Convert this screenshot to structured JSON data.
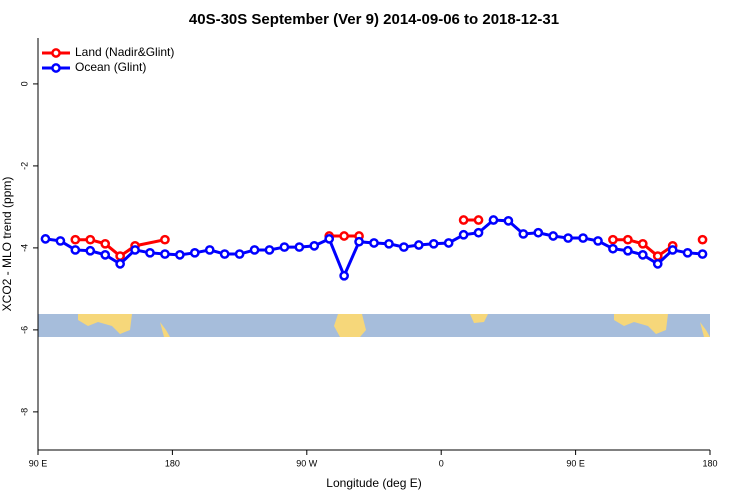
{
  "chart_data": {
    "type": "line",
    "title": "40S-30S September (Ver 9)   2014-09-06 to 2018-12-31",
    "xlabel": "Longitude (deg E)",
    "ylabel": "XCO2 - MLO trend (ppm)",
    "xlim": [
      90,
      540
    ],
    "ylim": [
      -8.93,
      1.12
    ],
    "xticks": [
      {
        "value": 90,
        "label": "90 E"
      },
      180,
      {
        "value": 270,
        "label": "90 W"
      },
      {
        "value": 360,
        "label": "0"
      },
      {
        "value": 450,
        "label": "90 E"
      },
      {
        "value": 540,
        "label": "180"
      }
    ],
    "yticks": [
      0,
      -2,
      -4,
      -6,
      -8
    ],
    "legend": "top-left",
    "series": [
      {
        "name": "Land (Nadir&Glint)",
        "color": "#ff0000",
        "x": [
          115,
          125,
          135,
          145,
          155,
          175,
          245,
          285,
          295,
          305,
          345,
          375,
          385,
          435,
          475,
          485,
          495,
          505,
          515,
          525,
          535
        ],
        "values": [
          -3.8,
          -3.8,
          -3.9,
          -4.2,
          -3.95,
          -3.8,
          null,
          -3.71,
          -3.71,
          -3.71,
          null,
          -3.32,
          -3.32,
          null,
          -3.8,
          -3.8,
          -3.9,
          -4.2,
          -3.95,
          null,
          -3.8
        ]
      },
      {
        "name": "Ocean (Glint)",
        "color": "#0000ff",
        "x": [
          95,
          105,
          115,
          125,
          135,
          145,
          155,
          165,
          175,
          185,
          195,
          205,
          215,
          225,
          235,
          245,
          255,
          265,
          275,
          285,
          295,
          305,
          315,
          325,
          335,
          345,
          355,
          365,
          375,
          385,
          395,
          405,
          415,
          425,
          435,
          445,
          455,
          465,
          475,
          485,
          495,
          505,
          515,
          525,
          535
        ],
        "values": [
          -3.78,
          -3.83,
          -4.05,
          -4.07,
          -4.17,
          -4.39,
          -4.05,
          -4.12,
          -4.15,
          -4.17,
          -4.12,
          -4.05,
          -4.15,
          -4.15,
          -4.05,
          -4.05,
          -3.98,
          -3.98,
          -3.95,
          -3.78,
          -4.68,
          -3.85,
          -3.88,
          -3.9,
          -3.98,
          -3.93,
          -3.9,
          -3.88,
          -3.68,
          -3.63,
          -3.32,
          -3.34,
          -3.66,
          -3.63,
          -3.71,
          -3.76,
          -3.76,
          -3.83,
          -4.02,
          -4.07,
          -4.17,
          -4.39,
          -4.05,
          -4.12,
          -4.15
        ]
      }
    ]
  }
}
